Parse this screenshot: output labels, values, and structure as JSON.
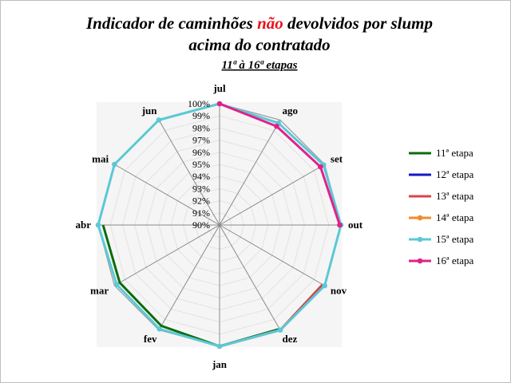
{
  "chart_data": {
    "type": "radar",
    "title_parts": [
      "Indicador de caminhões ",
      "não",
      " devolvidos por slump"
    ],
    "title_line2": "acima do contratado",
    "subtitle": "11ª à 16ª etapas",
    "categories": [
      "jul",
      "ago",
      "set",
      "out",
      "nov",
      "dez",
      "jan",
      "fev",
      "mar",
      "abr",
      "mai",
      "jun"
    ],
    "r_ticks": [
      "100%",
      "99%",
      "98%",
      "97%",
      "96%",
      "95%",
      "94%",
      "93%",
      "92%",
      "91%",
      "90%"
    ],
    "r_range": [
      90,
      100
    ],
    "grid": true,
    "legend_position": "right",
    "series": [
      {
        "name": "11ª etapa",
        "color": "#0d6b0d",
        "markers": false,
        "values": [
          null,
          null,
          null,
          null,
          null,
          99.9,
          100,
          99.6,
          99.5,
          99.6,
          null,
          null
        ]
      },
      {
        "name": "12ª etapa",
        "color": "#1717c8",
        "markers": false,
        "values": [
          null,
          null,
          null,
          null,
          null,
          null,
          null,
          null,
          null,
          99.8,
          null,
          null
        ]
      },
      {
        "name": "13ª etapa",
        "color": "#d64545",
        "markers": false,
        "values": [
          null,
          null,
          null,
          null,
          99.8,
          100,
          100,
          null,
          null,
          null,
          null,
          null
        ]
      },
      {
        "name": "14ª etapa",
        "color": "#f28c28",
        "markers": true,
        "values": [
          null,
          null,
          null,
          null,
          null,
          null,
          null,
          null,
          null,
          null,
          null,
          null
        ]
      },
      {
        "name": "15ª etapa",
        "color": "#5bc8d6",
        "markers": true,
        "values": [
          100,
          99.7,
          99.9,
          100,
          100,
          100,
          100,
          99.9,
          99.8,
          100,
          100,
          100
        ]
      },
      {
        "name": "16ª etapa",
        "color": "#e0218a",
        "markers": true,
        "values": [
          100,
          99.4,
          99.6,
          99.9,
          null,
          null,
          null,
          null,
          null,
          null,
          null,
          null
        ]
      }
    ]
  }
}
